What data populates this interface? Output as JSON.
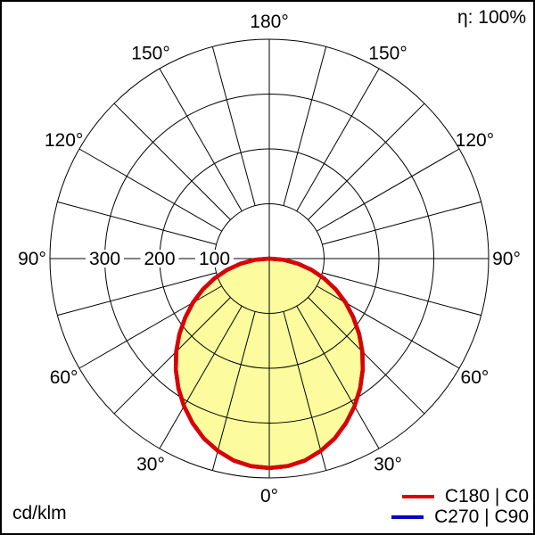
{
  "header": {
    "efficiency": "η: 100%"
  },
  "footer": {
    "units": "cd/klm"
  },
  "legend": {
    "position": "bottom-right",
    "items": [
      {
        "label": "C180 | C0",
        "color": "#dd0000"
      },
      {
        "label": "C270 | C90",
        "color": "#0000cc"
      }
    ]
  },
  "chart_data": {
    "type": "polar",
    "subtype": "luminous-intensity-distribution",
    "units": "cd/klm",
    "efficiency": "η: 100%",
    "fill_color": "#fcfc9e",
    "grid_color": "#000000",
    "radial_axis": {
      "ticks": [
        100,
        200,
        300,
        400
      ],
      "labeled_ticks": [
        "100",
        "200",
        "300"
      ],
      "max": 400,
      "label_side": "left"
    },
    "angle_grid_step_deg": 15,
    "angle_labels_deg": [
      0,
      30,
      60,
      90,
      120,
      150,
      180
    ],
    "angle_zero_position": "bottom",
    "gamma_deg": [
      -90,
      -85,
      -80,
      -75,
      -70,
      -65,
      -60,
      -55,
      -50,
      -45,
      -40,
      -35,
      -30,
      -25,
      -20,
      -15,
      -10,
      -5,
      0,
      5,
      10,
      15,
      20,
      25,
      30,
      35,
      40,
      45,
      50,
      55,
      60,
      65,
      70,
      75,
      80,
      85,
      90
    ],
    "series": [
      {
        "name": "C180 | C0",
        "color": "#dd0000",
        "intensity_cd_klm": [
          0,
          27,
          53,
          80,
          107,
          134,
          161,
          187,
          214,
          240,
          265,
          289,
          311,
          331,
          349,
          363,
          374,
          380,
          382,
          380,
          374,
          363,
          349,
          331,
          311,
          289,
          265,
          240,
          214,
          187,
          161,
          134,
          107,
          80,
          53,
          27,
          0
        ]
      },
      {
        "name": "C270 | C90",
        "color": "#0000cc",
        "intensity_cd_klm": [
          0,
          27,
          53,
          80,
          107,
          134,
          161,
          187,
          214,
          240,
          265,
          289,
          311,
          331,
          349,
          363,
          374,
          380,
          382,
          380,
          374,
          363,
          349,
          331,
          311,
          289,
          265,
          240,
          214,
          187,
          161,
          134,
          107,
          80,
          53,
          27,
          0
        ]
      }
    ]
  }
}
